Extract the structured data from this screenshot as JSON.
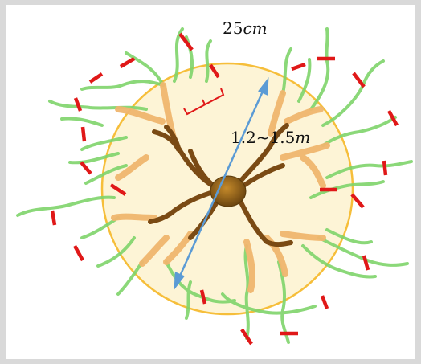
{
  "diagram": {
    "spacing_label": "25cm",
    "spacing_value": "25",
    "spacing_unit": "cm",
    "diameter_value": "1.2~1.5",
    "diameter_unit": "m",
    "colors": {
      "canopy_fill": "#fdf4d6",
      "canopy_outline": "#f6be3a",
      "main_branch": "#7a4a14",
      "trunk": "#8a5a14",
      "secondary_branch": "#f0b66e",
      "shoots": "#7fd46b",
      "cut_marks": "#e01818",
      "measure_arrow": "#5b9bd5",
      "bracket": "#e01818"
    }
  }
}
